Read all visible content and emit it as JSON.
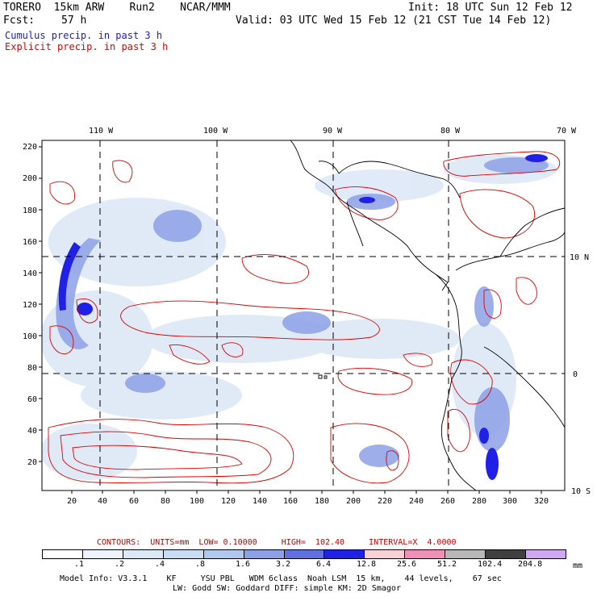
{
  "header": {
    "model": "TORERO  15km ARW    Run2    NCAR/MMM",
    "init": "Init: 18 UTC Sun 12 Feb 12",
    "fcst_label": "Fcst:",
    "fcst_value": "57 h",
    "valid": "Valid: 03 UTC Wed 15 Feb 12 (21 CST Tue 14 Feb 12)"
  },
  "legend": {
    "cumulus": "Cumulus precip. in past 3 h",
    "explicit": "Explicit precip. in past 3 h"
  },
  "map": {
    "top_lon_labels": [
      "110 W",
      "100 W",
      "90 W",
      "80 W",
      "70 W"
    ],
    "right_lat_labels": [
      "10 N",
      "0",
      "10 S"
    ],
    "y_ticks": [
      "220",
      "200",
      "180",
      "160",
      "140",
      "120",
      "100",
      "80",
      "60",
      "40",
      "20"
    ],
    "x_ticks": [
      "20",
      "40",
      "60",
      "80",
      "100",
      "120",
      "140",
      "160",
      "180",
      "200",
      "220",
      "240",
      "260",
      "280",
      "300",
      "320"
    ]
  },
  "contour_info": {
    "label": "CONTOURS:  UNITS=mm  LOW= 0.10000     HIGH=  102.40     INTERVAL=X  4.0000"
  },
  "colorbar": {
    "labels": [
      ".1",
      ".2",
      ".4",
      ".8",
      "1.6",
      "3.2",
      "6.4",
      "12.8",
      "25.6",
      "51.2",
      "102.4",
      "204.8"
    ],
    "unit": "mm",
    "colors": [
      "#ffffff",
      "#eef3fb",
      "#dde8f7",
      "#c8dcf3",
      "#b0c8ee",
      "#8ca0e6",
      "#6070e0",
      "#2020e6",
      "#f8d0d8",
      "#f090b8",
      "#b8b8b8",
      "#404040",
      "#d0a8f0"
    ]
  },
  "footer": {
    "line1": "Model Info: V3.3.1    KF     YSU PBL   WDM 6class  Noah LSM  15 km,    44 levels,    67 sec",
    "line2": "LW: Godd SW: Goddard DIFF: simple KM: 2D Smagor"
  }
}
